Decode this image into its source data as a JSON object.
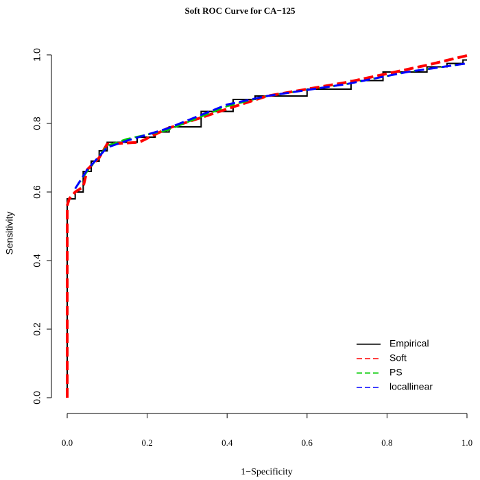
{
  "chart_data": {
    "type": "line",
    "title": "Soft ROC Curve for CA−125",
    "x_label": "1−Specificity",
    "y_label": "Sensitivity",
    "xlim": [
      0,
      1
    ],
    "ylim": [
      0,
      1
    ],
    "xticks": [
      {
        "value": 0,
        "label": "0.0"
      },
      0.2,
      0.4,
      0.6,
      0.8,
      {
        "value": 1,
        "label": "1.0"
      }
    ],
    "yticks": [
      {
        "value": 0,
        "label": "0.0"
      },
      0.2,
      0.4,
      0.6,
      0.8,
      {
        "value": 1,
        "label": "1.0"
      }
    ],
    "legend": "lower right",
    "series": [
      {
        "name": "Empirical",
        "color": "#000000",
        "style": "solid",
        "x": [
          0,
          0,
          0.02,
          0.02,
          0.04,
          0.04,
          0.06,
          0.06,
          0.08,
          0.08,
          0.1,
          0.1,
          0.175,
          0.175,
          0.22,
          0.22,
          0.255,
          0.255,
          0.335,
          0.335,
          0.415,
          0.415,
          0.47,
          0.47,
          0.6,
          0.6,
          0.71,
          0.71,
          0.79,
          0.79,
          0.9,
          0.9,
          0.95,
          0.95,
          0.99,
          0.99,
          1
        ],
        "values": [
          0,
          0.58,
          0.58,
          0.6,
          0.6,
          0.66,
          0.66,
          0.69,
          0.69,
          0.72,
          0.72,
          0.745,
          0.745,
          0.76,
          0.76,
          0.775,
          0.775,
          0.79,
          0.79,
          0.835,
          0.835,
          0.87,
          0.87,
          0.88,
          0.88,
          0.9,
          0.9,
          0.925,
          0.925,
          0.95,
          0.95,
          0.965,
          0.965,
          0.975,
          0.975,
          0.985,
          0.985
        ]
      },
      {
        "name": "Soft",
        "color": "#ff0000",
        "style": "dashed",
        "x": [
          0,
          0,
          0.005,
          0.02,
          0.04,
          0.05,
          0.08,
          0.1,
          0.18,
          0.25,
          0.33,
          0.42,
          0.5,
          0.6,
          0.7,
          0.8,
          0.9,
          1
        ],
        "values": [
          0,
          0.56,
          0.58,
          0.6,
          0.615,
          0.665,
          0.7,
          0.74,
          0.745,
          0.785,
          0.815,
          0.85,
          0.88,
          0.9,
          0.92,
          0.945,
          0.97,
          0.998
        ]
      },
      {
        "name": "PS",
        "color": "#00cc00",
        "style": "dashed",
        "x": [
          0.02,
          0.05,
          0.1,
          0.15,
          0.25,
          0.4,
          0.5,
          0.7,
          0.85,
          1
        ],
        "values": [
          0.61,
          0.66,
          0.735,
          0.755,
          0.78,
          0.85,
          0.88,
          0.915,
          0.95,
          0.975
        ]
      },
      {
        "name": "locallinear",
        "color": "#0000ff",
        "style": "dashed",
        "x": [
          0.02,
          0.05,
          0.1,
          0.15,
          0.25,
          0.4,
          0.5,
          0.7,
          0.85,
          1
        ],
        "values": [
          0.61,
          0.665,
          0.73,
          0.75,
          0.785,
          0.855,
          0.88,
          0.915,
          0.95,
          0.975
        ]
      }
    ]
  }
}
